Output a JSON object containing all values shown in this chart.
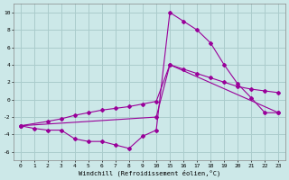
{
  "xlabel": "Windchill (Refroidissement éolien,°C)",
  "background_color": "#cce8e8",
  "grid_color": "#aacccc",
  "line_color": "#990099",
  "xtick_labels": [
    "0",
    "1",
    "2",
    "3",
    "4",
    "5",
    "6",
    "7",
    "8",
    "9",
    "10",
    "15",
    "16",
    "17",
    "18",
    "19",
    "20",
    "21",
    "22",
    "23"
  ],
  "yticks": [
    -6,
    -4,
    -2,
    0,
    2,
    4,
    6,
    8,
    10
  ],
  "ylim": [
    -7,
    11
  ],
  "line1_xi": [
    0,
    1,
    2,
    3,
    4,
    5,
    6,
    7,
    8,
    9,
    10,
    11,
    12,
    13,
    14,
    15,
    16,
    17,
    18,
    19
  ],
  "line1_y": [
    -3.0,
    -3.3,
    -3.5,
    -3.5,
    -4.5,
    -4.8,
    -4.8,
    -5.2,
    -5.6,
    -4.2,
    -3.5,
    10.0,
    9.0,
    8.0,
    6.5,
    4.0,
    1.8,
    0.2,
    -1.5,
    -1.5
  ],
  "line2_xi": [
    0,
    2,
    3,
    4,
    5,
    6,
    7,
    8,
    9,
    10,
    11,
    12,
    13,
    14,
    15,
    16,
    17,
    18,
    19
  ],
  "line2_y": [
    -3.0,
    -2.5,
    -2.2,
    -1.8,
    -1.5,
    -1.2,
    -1.0,
    -0.8,
    -0.5,
    -0.2,
    4.0,
    3.5,
    3.0,
    2.5,
    2.0,
    1.5,
    1.2,
    1.0,
    0.8
  ],
  "line3_xi": [
    0,
    10,
    11,
    19
  ],
  "line3_y": [
    -3.0,
    -2.0,
    4.0,
    -1.5
  ]
}
